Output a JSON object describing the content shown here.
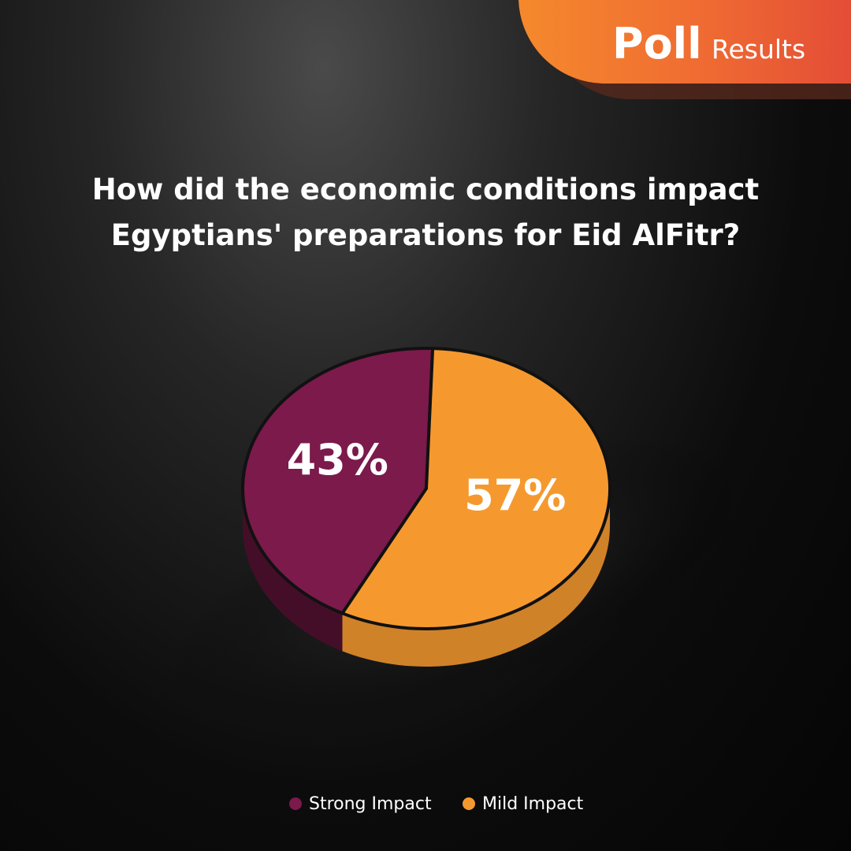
{
  "badge": {
    "title": "Poll",
    "subtitle": "Results"
  },
  "chart_data": {
    "type": "pie",
    "title": "How did the economic conditions impact Egyptians' preparations for Eid AlFitr?",
    "categories": [
      "Strong Impact",
      "Mild Impact"
    ],
    "values": [
      43,
      57
    ],
    "value_labels": [
      "43%",
      "57%"
    ],
    "colors": [
      "#7b1a4b",
      "#f5992f"
    ]
  }
}
